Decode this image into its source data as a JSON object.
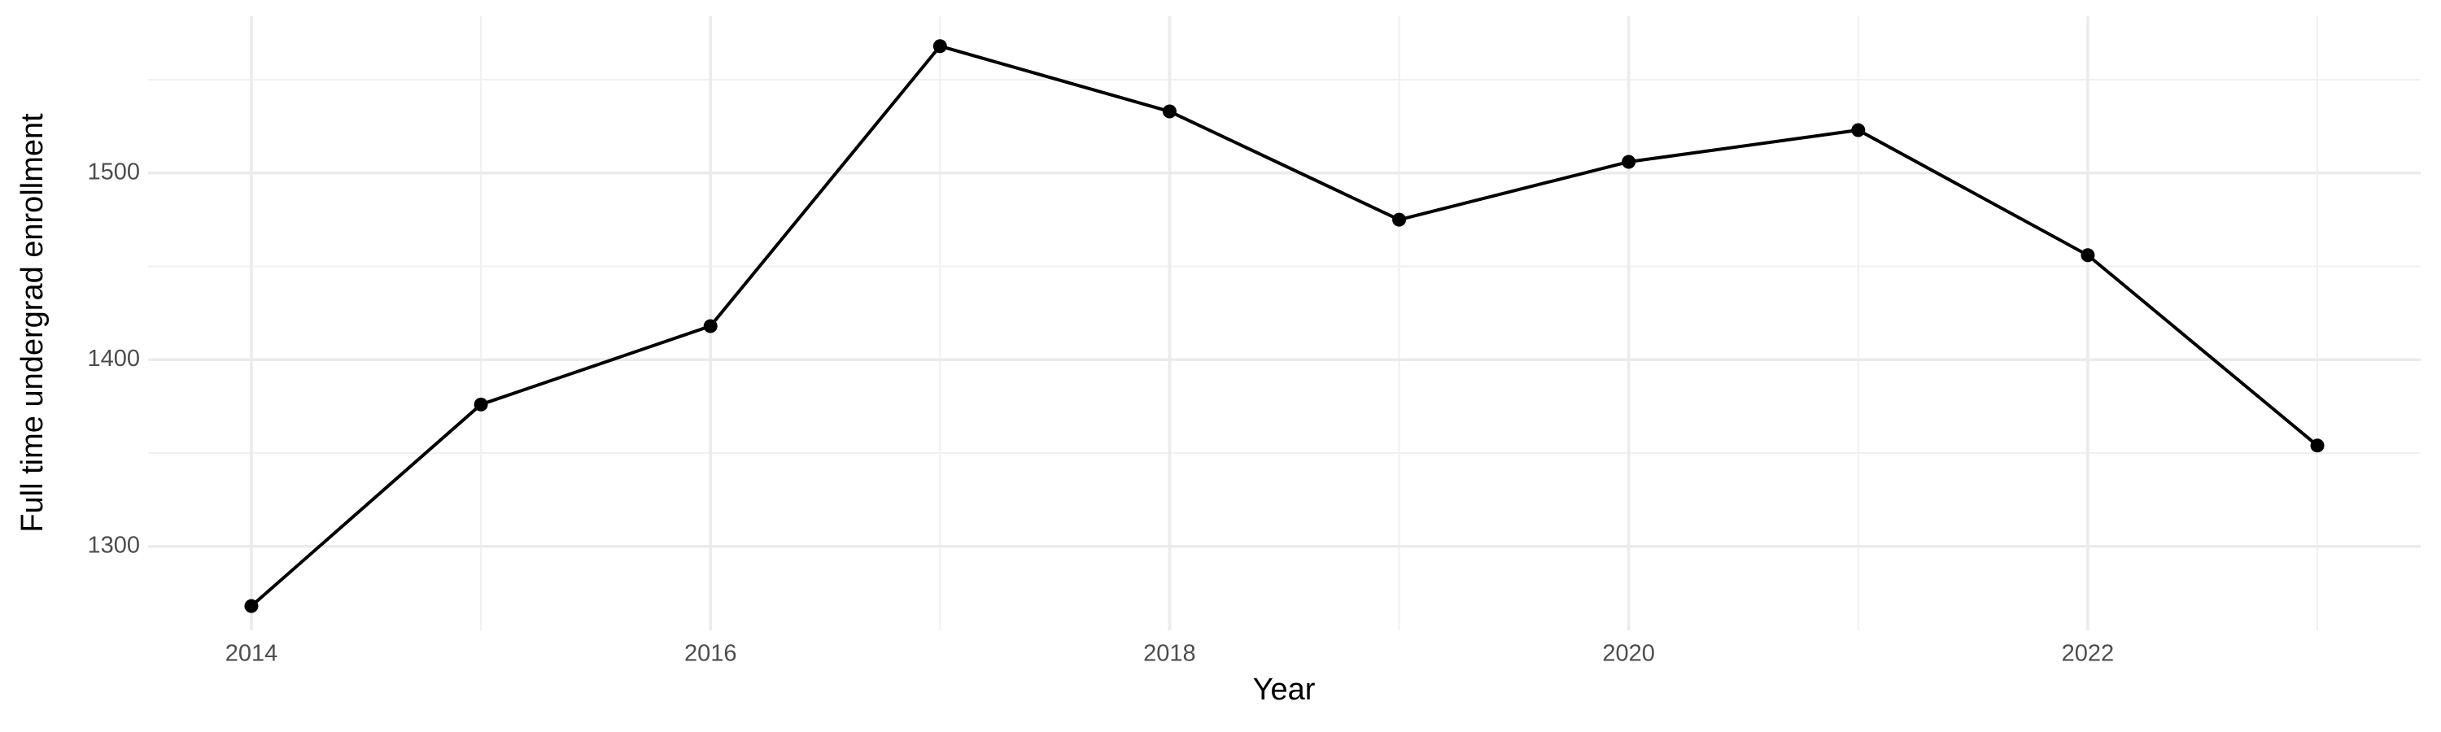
{
  "chart_data": {
    "type": "line",
    "x_label": "Year",
    "y_label": "Full time undergrad enrollment",
    "x": [
      2014,
      2015,
      2016,
      2017,
      2018,
      2019,
      2020,
      2021,
      2022,
      2023
    ],
    "series": [
      {
        "color": "#000000",
        "values": [
          1268,
          1376,
          1418,
          1568,
          1533,
          1475,
          1506,
          1523,
          1456,
          1354
        ]
      }
    ],
    "xlim": [
      2013.55,
      2023.45
    ],
    "xticks": [
      2014,
      2016,
      2018,
      2020,
      2022
    ],
    "ylim": [
      1255,
      1584
    ],
    "yticks": [
      1300,
      1400,
      1500
    ],
    "grid": true
  }
}
